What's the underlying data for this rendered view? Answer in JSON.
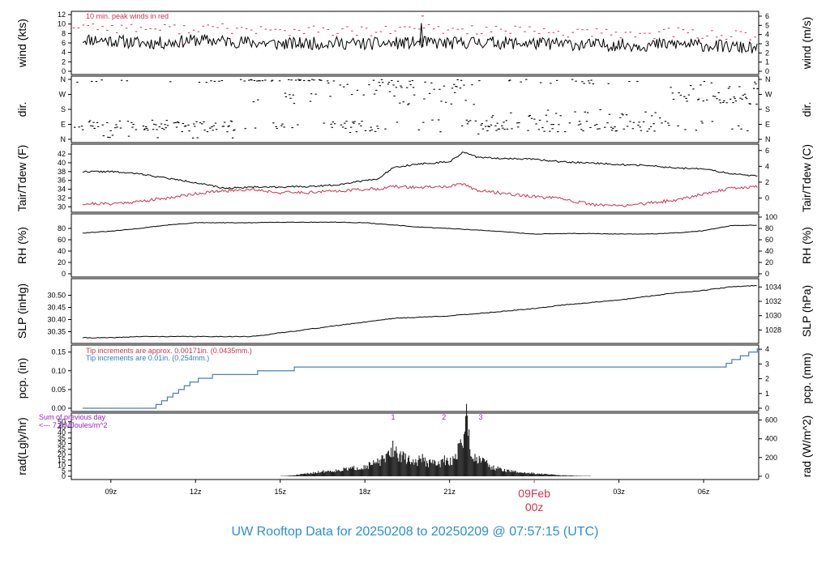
{
  "colors": {
    "temp": "#000000",
    "dew": "#cc3355",
    "precip": "#4a7fb5",
    "peak_wind": "#cc3355",
    "title": "#2a90d0",
    "date_label": "#cc3355",
    "notes_purple": "#9a1fd0"
  },
  "title": "UW Rooftop Data for 20250208  to  20250209 @ 07:57:15  (UTC)",
  "x_ticks": [
    "09z",
    "12z",
    "15z",
    "18z",
    "21z",
    "03z",
    "06z"
  ],
  "date_label": "09Feb",
  "date_sub_label": "00z",
  "chart_data": [
    {
      "type": "line",
      "name": "wind",
      "ylabel_left": "wind (kts)",
      "ylabel_right": "wind (m/s)",
      "yticks_left": [
        "0",
        "2",
        "4",
        "6",
        "8",
        "10",
        "12"
      ],
      "yticks_right": [
        "0",
        "1",
        "2",
        "3",
        "4",
        "5",
        "6"
      ],
      "ylim": [
        0,
        12
      ],
      "annotation": "10 min. peak winds in red",
      "x_hours": [
        8,
        9,
        10,
        11,
        12,
        13,
        14,
        15,
        16,
        17,
        18,
        19,
        20,
        21,
        22,
        23,
        24,
        25,
        26,
        27,
        28,
        29,
        30,
        31.9
      ],
      "series": [
        {
          "values": [
            6.8,
            6.5,
            6.0,
            6.0,
            6.6,
            6.4,
            6.1,
            5.8,
            5.9,
            6.0,
            5.8,
            5.9,
            6.1,
            5.9,
            6.2,
            6.0,
            5.9,
            5.8,
            5.6,
            5.6,
            5.5,
            5.8,
            5.5,
            4.8
          ]
        },
        {
          "values": [
            9.7,
            9.3,
            9.1,
            8.9,
            9.2,
            9.0,
            8.8,
            8.4,
            8.6,
            8.5,
            8.3,
            8.6,
            9.1,
            8.7,
            8.9,
            8.5,
            8.4,
            8.2,
            8.0,
            7.9,
            7.9,
            8.2,
            7.9,
            7.3
          ]
        }
      ],
      "peak_event": {
        "x_hour": 20.0,
        "value": 10.2
      }
    },
    {
      "type": "scatter",
      "name": "dir",
      "ylabel_left": "dir.",
      "ylabel_right": "dir.",
      "yticks_left": [
        "N",
        "E",
        "S",
        "W",
        "N"
      ],
      "yticks_right": [
        "N",
        "E",
        "S",
        "W",
        "N"
      ],
      "ylim": [
        0,
        360
      ]
    },
    {
      "type": "line",
      "name": "temp",
      "ylabel_left": "Tair/Tdew (F)",
      "ylabel_right": "Tair/Tdew (C)",
      "yticks_left": [
        "30",
        "32",
        "34",
        "36",
        "38",
        "40",
        "42"
      ],
      "yticks_right": [
        "0",
        "2",
        "4",
        "6"
      ],
      "ylim": [
        29.5,
        43.5
      ],
      "x_hours": [
        8,
        9,
        10,
        11,
        12,
        13,
        14,
        15,
        16,
        17,
        18,
        18.5,
        19,
        20,
        21,
        21.5,
        22,
        23,
        24,
        25,
        26,
        27,
        28,
        29,
        30,
        31,
        31.9
      ],
      "series": [
        {
          "values": [
            38,
            38,
            37.5,
            36.5,
            35.5,
            34.2,
            34.5,
            34.5,
            34.6,
            35,
            36,
            36.4,
            39,
            39.8,
            40.2,
            42.5,
            41.2,
            41,
            40.8,
            40.2,
            40,
            39.6,
            39.4,
            38.8,
            38.6,
            37.5,
            37
          ]
        },
        {
          "values": [
            30.7,
            30.7,
            31.2,
            32.0,
            33.0,
            33.6,
            34.0,
            33.2,
            33.3,
            33.6,
            34.0,
            34.1,
            34.6,
            34.4,
            34.6,
            35.2,
            33.7,
            33.0,
            32.3,
            31.8,
            30.5,
            30.2,
            30.8,
            31.5,
            33.0,
            34.2,
            34.6
          ]
        }
      ]
    },
    {
      "type": "line",
      "name": "rh",
      "ylabel_left": "RH (%)",
      "ylabel_right": "RH (%)",
      "yticks_left": [
        "0",
        "20",
        "40",
        "60",
        "80"
      ],
      "yticks_right": [
        "0",
        "20",
        "40",
        "60",
        "80",
        "100"
      ],
      "ylim": [
        0,
        100
      ],
      "x_hours": [
        8,
        9,
        10,
        11,
        12,
        13,
        14,
        15,
        16,
        17,
        18,
        19,
        20,
        21,
        22,
        23,
        24,
        25,
        26,
        27,
        28,
        29,
        30,
        31,
        31.9
      ],
      "series": [
        {
          "values": [
            72,
            75,
            80,
            86,
            90,
            90,
            90,
            91,
            91,
            91,
            90,
            86,
            82,
            80,
            77,
            74,
            70,
            71,
            71,
            70,
            70,
            72,
            76,
            85,
            86
          ]
        }
      ]
    },
    {
      "type": "line",
      "name": "slp",
      "ylabel_left": "SLP (inHg)",
      "ylabel_right": "SLP (hPa)",
      "yticks_left": [
        "30.35",
        "30.40",
        "30.45",
        "30.50"
      ],
      "yticks_right": [
        "1028",
        "1030",
        "1032",
        "1034"
      ],
      "ylim": [
        30.315,
        30.555
      ],
      "x_hours": [
        8,
        9,
        10,
        11,
        12,
        13,
        14,
        15,
        16,
        17,
        18,
        19,
        20,
        21,
        22,
        23,
        24,
        25,
        26,
        27,
        28,
        29,
        30,
        31,
        31.9
      ],
      "series": [
        {
          "values": [
            30.325,
            30.325,
            30.33,
            30.33,
            30.33,
            30.33,
            30.33,
            30.345,
            30.36,
            30.375,
            30.39,
            30.405,
            30.41,
            30.415,
            30.425,
            30.435,
            30.445,
            30.46,
            30.47,
            30.48,
            30.495,
            30.51,
            30.52,
            30.535,
            30.54
          ]
        }
      ]
    },
    {
      "type": "line",
      "name": "precip",
      "ylabel_left": "pcp. (in)",
      "ylabel_right": "pcp. (mm)",
      "yticks_left": [
        "0.00",
        "0.05",
        "0.10",
        "0.15"
      ],
      "yticks_right": [
        "0",
        "1",
        "2",
        "3",
        "4"
      ],
      "ylim": [
        0,
        0.16
      ],
      "annotation_red": "Tip increments are approx. 0.00171in. (0.0435mm.)",
      "annotation_blue": "Tip increments are 0.01in. (0.254mm.)",
      "x_hours": [
        8,
        10.6,
        10.8,
        11.0,
        11.2,
        11.4,
        11.6,
        11.8,
        12.1,
        12.6,
        13.3,
        14.2,
        15.5,
        20.0,
        24.0,
        28.0,
        30.6,
        30.8,
        31.0,
        31.3,
        31.6,
        31.9
      ],
      "series": [
        {
          "values": [
            0.0,
            0.01,
            0.02,
            0.03,
            0.04,
            0.05,
            0.06,
            0.07,
            0.08,
            0.09,
            0.09,
            0.1,
            0.11,
            0.11,
            0.11,
            0.11,
            0.11,
            0.12,
            0.13,
            0.14,
            0.15,
            0.16
          ]
        }
      ]
    },
    {
      "type": "area",
      "name": "radiation",
      "ylabel_left": "rad(Lgly/hr)",
      "ylabel_right": "rad (W/m^2)",
      "yticks_left": [
        "0",
        "5",
        "10",
        "15",
        "20",
        "25",
        "30",
        "35",
        "40",
        "45",
        "50"
      ],
      "yticks_right": [
        "0",
        "200",
        "400",
        "600"
      ],
      "ylim": [
        0,
        55
      ],
      "annotation_line1": "Sum of previous day",
      "annotation_line2": "<--- 7.2 MJoules/m^2",
      "peak_labels": [
        "1",
        "2",
        "3"
      ],
      "peak_label_hours": [
        19.0,
        20.8,
        22.1
      ],
      "x_hours": [
        15.0,
        15.5,
        16.0,
        16.5,
        17.0,
        17.5,
        18.0,
        18.5,
        18.8,
        19.0,
        19.2,
        19.5,
        19.8,
        20.0,
        20.2,
        20.4,
        20.6,
        20.8,
        21.0,
        21.2,
        21.4,
        21.5,
        21.6,
        21.7,
        21.8,
        22.0,
        22.2,
        22.4,
        22.7,
        23.0,
        23.5,
        24.0,
        25.0,
        26.0
      ],
      "series": [
        {
          "values": [
            0,
            1,
            3,
            5,
            6,
            8,
            10,
            15,
            20,
            30,
            22,
            18,
            14,
            20,
            13,
            15,
            12,
            17,
            14,
            20,
            35,
            45,
            60,
            40,
            20,
            18,
            22,
            10,
            8,
            6,
            4,
            3,
            1,
            0
          ]
        }
      ]
    }
  ]
}
